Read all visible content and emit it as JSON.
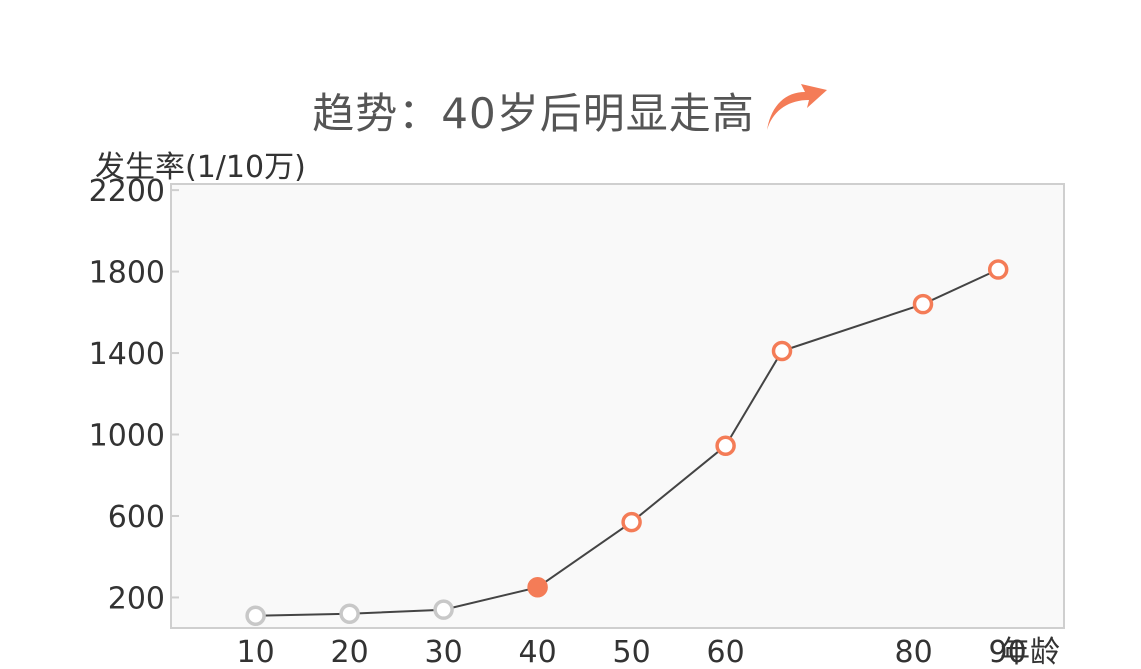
{
  "chart_data": {
    "type": "line",
    "title": "趋势：40岁后明显走高",
    "ylabel": "发生率(1/10万)",
    "xlabel": "年龄",
    "ylim": [
      50,
      2230
    ],
    "xlim": [
      1,
      96
    ],
    "yticks": [
      200,
      600,
      1000,
      1400,
      1800,
      2200
    ],
    "xticks": [
      10,
      20,
      30,
      40,
      50,
      60,
      80,
      90
    ],
    "grid": false,
    "colors": {
      "line": "#444444",
      "low_marker": "#c8c8c8",
      "high_marker": "#f47c57",
      "plot_bg": "#f9f9f9",
      "frame": "#cfcfcf",
      "arrow": "#f47c57"
    },
    "series": [
      {
        "x": [
          10,
          20,
          30,
          40,
          50,
          60,
          66,
          81,
          89
        ],
        "y": [
          110,
          120,
          140,
          250,
          570,
          945,
          1410,
          1640,
          1810
        ],
        "marker_styles": [
          "hollow-gray",
          "hollow-gray",
          "hollow-gray",
          "filled-orange",
          "hollow-orange",
          "hollow-orange",
          "hollow-orange",
          "hollow-orange",
          "hollow-orange"
        ]
      }
    ]
  }
}
